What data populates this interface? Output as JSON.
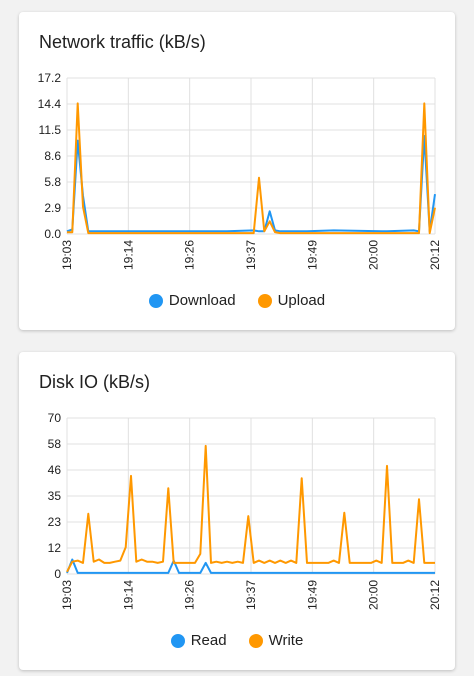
{
  "chart_data": [
    {
      "type": "line",
      "title": "Network traffic (kB/s)",
      "xlabel": "",
      "ylabel": "",
      "x_tick_labels": [
        "19:03",
        "19:14",
        "19:26",
        "19:37",
        "19:49",
        "20:00",
        "20:12"
      ],
      "x_range_minutes": [
        0,
        69
      ],
      "yticks": [
        "17.2",
        "14.4",
        "11.5",
        "8.6",
        "5.8",
        "2.9",
        "0.0"
      ],
      "ylim": [
        0,
        17.2
      ],
      "grid": true,
      "legend_position": "bottom",
      "series": [
        {
          "name": "Download",
          "color": "#2196f3",
          "x": [
            0,
            1,
            2,
            3,
            4,
            5,
            10,
            20,
            30,
            35,
            36,
            37,
            38,
            39,
            40,
            45,
            50,
            60,
            65,
            66,
            67,
            68,
            69
          ],
          "values": [
            0.3,
            0.5,
            10.3,
            4.2,
            0.3,
            0.3,
            0.3,
            0.3,
            0.3,
            0.4,
            0.3,
            0.3,
            2.5,
            0.4,
            0.3,
            0.3,
            0.4,
            0.3,
            0.4,
            0.3,
            10.8,
            0.3,
            4.4
          ]
        },
        {
          "name": "Upload",
          "color": "#ff9800",
          "x": [
            0,
            1,
            2,
            3,
            4,
            5,
            10,
            20,
            30,
            35,
            36,
            37,
            38,
            39,
            40,
            45,
            50,
            60,
            65,
            66,
            67,
            68,
            69
          ],
          "values": [
            0.2,
            0.2,
            14.4,
            3.0,
            0.1,
            0.1,
            0.1,
            0.1,
            0.1,
            0.1,
            6.2,
            0.3,
            1.4,
            0.2,
            0.1,
            0.1,
            0.1,
            0.1,
            0.1,
            0.1,
            14.4,
            0.1,
            2.9
          ]
        }
      ]
    },
    {
      "type": "line",
      "title": "Disk IO (kB/s)",
      "xlabel": "",
      "ylabel": "",
      "x_tick_labels": [
        "19:03",
        "19:14",
        "19:26",
        "19:37",
        "19:49",
        "20:00",
        "20:12"
      ],
      "x_range_minutes": [
        0,
        69
      ],
      "yticks": [
        "70",
        "58",
        "46",
        "35",
        "23",
        "12",
        "0"
      ],
      "ylim": [
        0,
        70
      ],
      "grid": true,
      "legend_position": "bottom",
      "series": [
        {
          "name": "Read",
          "color": "#2196f3",
          "x": [
            0,
            1,
            2,
            4,
            6,
            10,
            15,
            19,
            20,
            21,
            25,
            26,
            27,
            28,
            32,
            40,
            50,
            60,
            68,
            69
          ],
          "values": [
            0.5,
            6.5,
            0.5,
            0.5,
            0.5,
            0.5,
            0.5,
            0.5,
            6.0,
            0.5,
            0.5,
            5.0,
            0.5,
            0.5,
            0.5,
            0.5,
            0.5,
            0.5,
            0.5,
            0.5
          ]
        },
        {
          "name": "Write",
          "color": "#ff9800",
          "x": [
            0,
            1,
            2,
            3,
            4,
            5,
            6,
            7,
            8,
            9,
            10,
            11,
            12,
            13,
            14,
            15,
            16,
            17,
            18,
            19,
            20,
            21,
            22,
            23,
            24,
            25,
            26,
            27,
            28,
            29,
            30,
            31,
            32,
            33,
            34,
            35,
            36,
            37,
            38,
            39,
            40,
            41,
            42,
            43,
            44,
            45,
            46,
            47,
            48,
            49,
            50,
            51,
            52,
            53,
            54,
            55,
            56,
            57,
            58,
            59,
            60,
            61,
            62,
            63,
            64,
            65,
            66,
            67,
            68,
            69
          ],
          "values": [
            1.0,
            5.5,
            6.0,
            5.0,
            27.0,
            5.5,
            6.5,
            5.0,
            5.0,
            5.5,
            6.0,
            12.0,
            44.0,
            5.5,
            6.5,
            5.5,
            5.5,
            5.0,
            5.5,
            38.5,
            5.0,
            5.0,
            5.0,
            5.0,
            5.0,
            9.0,
            57.5,
            5.0,
            5.5,
            5.0,
            5.5,
            5.0,
            5.5,
            5.0,
            26.0,
            5.0,
            6.0,
            5.0,
            6.0,
            5.0,
            6.0,
            5.0,
            6.0,
            5.0,
            43.0,
            5.0,
            5.0,
            5.0,
            5.0,
            5.0,
            6.0,
            5.0,
            27.5,
            5.0,
            5.0,
            5.0,
            5.0,
            5.0,
            6.0,
            5.0,
            48.5,
            5.0,
            5.0,
            5.0,
            6.0,
            5.0,
            33.5,
            5.0,
            5.0,
            5.0
          ]
        }
      ]
    }
  ]
}
